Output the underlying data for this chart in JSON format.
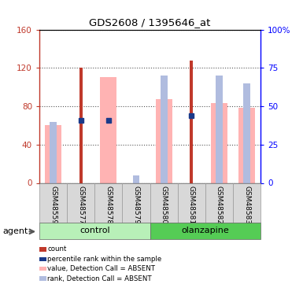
{
  "title": "GDS2608 / 1395646_at",
  "samples": [
    "GSM48559",
    "GSM48577",
    "GSM48578",
    "GSM48579",
    "GSM48580",
    "GSM48581",
    "GSM48582",
    "GSM48583"
  ],
  "red_bars": [
    0,
    120,
    0,
    0,
    0,
    128,
    0,
    0
  ],
  "pink_bars": [
    60,
    0,
    110,
    0,
    87,
    0,
    83,
    78
  ],
  "blue_dots_left": [
    0,
    65,
    65,
    0,
    0,
    70,
    0,
    0
  ],
  "blue_rank_right": [
    40,
    0,
    0,
    5,
    70,
    0,
    70,
    65
  ],
  "ylim_left": [
    0,
    160
  ],
  "ylim_right": [
    0,
    100
  ],
  "yticks_left": [
    0,
    40,
    80,
    120,
    160
  ],
  "yticks_right": [
    0,
    25,
    50,
    75,
    100
  ],
  "color_red": "#c0392b",
  "color_pink": "#ffb3b3",
  "color_blue_dark": "#1a3a8a",
  "color_blue_light": "#b0bcdf",
  "color_group_control_light": "#b8f0b8",
  "color_group_control_dark": "#55cc55",
  "color_group_olanzapine_light": "#55cc55",
  "color_group_olanzapine_dark": "#22aa22",
  "legend_labels": [
    "count",
    "percentile rank within the sample",
    "value, Detection Call = ABSENT",
    "rank, Detection Call = ABSENT"
  ],
  "legend_colors": [
    "#c0392b",
    "#1a3a8a",
    "#ffb3b3",
    "#b0bcdf"
  ],
  "agent_label": "agent"
}
